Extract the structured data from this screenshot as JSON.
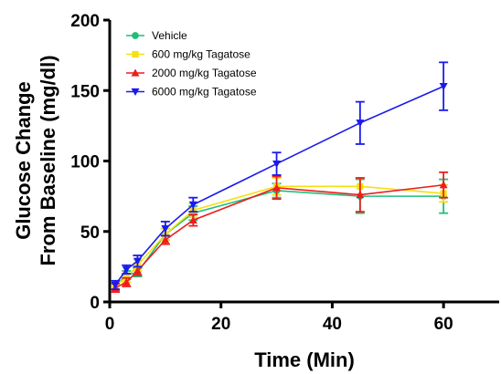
{
  "chart_data": {
    "type": "line",
    "title": "",
    "xlabel": "Time (Min)",
    "ylabel_lines": [
      "Glucose Change",
      "From Baseline (mg/dl)"
    ],
    "xlim": [
      0,
      70
    ],
    "ylim": [
      0,
      200
    ],
    "xticks": [
      0,
      20,
      40,
      60
    ],
    "yticks": [
      0,
      50,
      100,
      150,
      200
    ],
    "grid": false,
    "legend_position": "top-left",
    "series": [
      {
        "name": "Vehicle",
        "color": "#1fbf7a",
        "marker": "circle",
        "x": [
          1,
          3,
          5,
          10,
          15,
          30,
          45,
          60
        ],
        "y": [
          11,
          19,
          21,
          48,
          63,
          79,
          75,
          75
        ],
        "err": [
          3,
          3,
          3,
          4,
          5,
          5,
          12,
          12
        ]
      },
      {
        "name": "600 mg/kg Tagatose",
        "color": "#f5e010",
        "marker": "square",
        "x": [
          1,
          3,
          5,
          10,
          15,
          30,
          45,
          60
        ],
        "y": [
          12,
          17,
          26,
          48,
          65,
          82,
          82,
          77
        ],
        "err": [
          3,
          3,
          4,
          4,
          5,
          6,
          6,
          6
        ]
      },
      {
        "name": "2000 mg/kg Tagatose",
        "color": "#ee1c1c",
        "marker": "triangle-up",
        "x": [
          1,
          3,
          5,
          10,
          15,
          30,
          45,
          60
        ],
        "y": [
          10,
          14,
          22,
          44,
          58,
          81,
          76,
          83
        ],
        "err": [
          3,
          3,
          3,
          3,
          4,
          8,
          12,
          9
        ]
      },
      {
        "name": "6000 mg/kg Tagatose",
        "color": "#1a1aee",
        "marker": "triangle-down",
        "x": [
          1,
          3,
          5,
          10,
          15,
          30,
          45,
          60
        ],
        "y": [
          12,
          23,
          29,
          52,
          69,
          98,
          127,
          153
        ],
        "err": [
          3,
          3,
          4,
          5,
          5,
          8,
          15,
          17
        ]
      }
    ]
  }
}
